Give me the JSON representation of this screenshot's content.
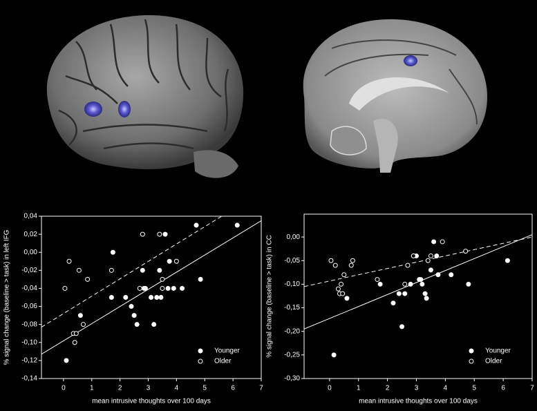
{
  "chart_data": [
    {
      "type": "scatter",
      "x_label": "mean intrusive thoughts over 100 days",
      "y_label": "% signal change (baseline > task) in left IFG",
      "xlim": [
        -0.78,
        7
      ],
      "xticks": [
        0,
        1,
        2,
        3,
        4,
        5,
        6,
        7
      ],
      "ylim": [
        -0.14,
        0.04
      ],
      "yticks": [
        {
          "value": -0.14,
          "label": "-0,14"
        },
        {
          "value": -0.12,
          "label": "-0,12"
        },
        {
          "value": -0.1,
          "label": "-0,10"
        },
        {
          "value": -0.08,
          "label": "-0,08"
        },
        {
          "value": -0.06,
          "label": "-0,06"
        },
        {
          "value": -0.04,
          "label": "-0,04"
        },
        {
          "value": -0.02,
          "label": "-0,02"
        },
        {
          "value": 0,
          "label": "0,00"
        },
        {
          "value": 0.02,
          "label": "0,02"
        },
        {
          "value": 0.04,
          "label": "0,04"
        }
      ],
      "legend": "lower right",
      "series": [
        {
          "name": "Younger",
          "color": "#ffffff",
          "marker": "filled",
          "line_style": "solid",
          "x": [
            0.1,
            0.6,
            1.7,
            1.75,
            2.2,
            2.4,
            2.5,
            2.6,
            2.8,
            2.85,
            2.9,
            3.1,
            3.2,
            3.3,
            3.4,
            3.45,
            3.6,
            3.7,
            3.75,
            3.9,
            4.2,
            4.7,
            4.85,
            6.15
          ],
          "y": [
            -0.12,
            -0.07,
            -0.05,
            0.0,
            -0.05,
            -0.06,
            -0.07,
            -0.08,
            -0.02,
            -0.04,
            -0.04,
            -0.05,
            -0.08,
            -0.05,
            -0.02,
            -0.05,
            0.02,
            -0.04,
            -0.01,
            -0.04,
            -0.04,
            0.03,
            -0.03,
            0.03
          ],
          "trend": {
            "x": [
              -0.78,
              7
            ],
            "y": [
              -0.113,
              0.035
            ]
          }
        },
        {
          "name": "Older",
          "color": "#ffffff",
          "marker": "open",
          "line_style": "dashed",
          "x": [
            0.05,
            0.2,
            0.35,
            0.4,
            0.45,
            0.55,
            0.7,
            0.85,
            1.7,
            2.7,
            2.8,
            3.4,
            3.5,
            3.5,
            4.0
          ],
          "y": [
            -0.04,
            -0.01,
            -0.09,
            -0.1,
            -0.09,
            -0.02,
            -0.08,
            -0.03,
            -0.02,
            -0.04,
            0.02,
            0.02,
            -0.03,
            -0.04,
            -0.01
          ],
          "trend": {
            "x": [
              -0.78,
              5.6
            ],
            "y": [
              -0.083,
              0.04
            ]
          }
        }
      ]
    },
    {
      "type": "scatter",
      "x_label": "mean intrusive thoughts over 100 days",
      "y_label": "% signal change (baseline > task) in CC",
      "xlim": [
        -0.88,
        7
      ],
      "xticks": [
        0,
        1,
        2,
        3,
        4,
        5,
        6,
        7
      ],
      "ylim": [
        -0.3,
        0.0485
      ],
      "yticks": [
        {
          "value": -0.3,
          "label": "-0,30"
        },
        {
          "value": -0.25,
          "label": "-0,25"
        },
        {
          "value": -0.2,
          "label": "-0,20"
        },
        {
          "value": -0.15,
          "label": "-0,15"
        },
        {
          "value": -0.1,
          "label": "-0,10"
        },
        {
          "value": -0.05,
          "label": "-0,05"
        },
        {
          "value": 0,
          "label": "0,00"
        }
      ],
      "legend": "lower right",
      "series": [
        {
          "name": "Younger",
          "color": "#ffffff",
          "marker": "filled",
          "line_style": "solid",
          "x": [
            0.15,
            0.6,
            1.75,
            2.2,
            2.4,
            2.5,
            2.6,
            2.8,
            2.9,
            3.0,
            3.1,
            3.15,
            3.2,
            3.3,
            3.35,
            3.5,
            3.6,
            3.7,
            3.75,
            4.2,
            4.8,
            6.15
          ],
          "y": [
            -0.25,
            -0.13,
            -0.1,
            -0.14,
            -0.12,
            -0.19,
            -0.12,
            -0.1,
            -0.04,
            -0.04,
            -0.09,
            -0.09,
            -0.1,
            -0.12,
            -0.13,
            -0.07,
            -0.01,
            -0.04,
            -0.08,
            -0.08,
            -0.1,
            -0.05
          ],
          "trend": {
            "x": [
              -0.88,
              7
            ],
            "y": [
              -0.195,
              0.005
            ]
          }
        },
        {
          "name": "Older",
          "color": "#ffffff",
          "marker": "open",
          "line_style": "dashed",
          "x": [
            0.05,
            0.2,
            0.3,
            0.35,
            0.4,
            0.45,
            0.5,
            0.75,
            0.8,
            1.65,
            2.6,
            2.7,
            2.9,
            3.4,
            3.5,
            3.9,
            4.7
          ],
          "y": [
            -0.05,
            -0.06,
            -0.11,
            -0.12,
            -0.1,
            -0.12,
            -0.08,
            -0.06,
            -0.05,
            -0.09,
            -0.1,
            -0.06,
            -0.04,
            -0.05,
            -0.04,
            -0.01,
            -0.03
          ],
          "trend": {
            "x": [
              -0.88,
              7
            ],
            "y": [
              -0.105,
              0.0
            ]
          }
        }
      ]
    }
  ]
}
